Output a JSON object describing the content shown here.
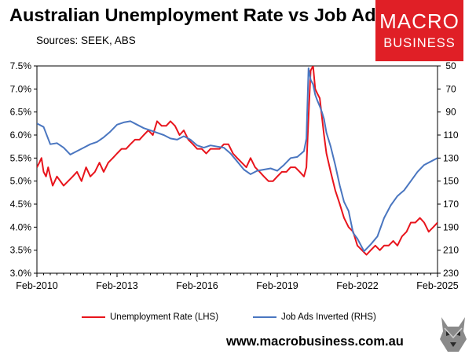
{
  "header": {
    "title": "Australian Unemployment Rate vs Job Ads",
    "subtitle": "Sources: SEEK, ABS"
  },
  "logo": {
    "line1": "MACRO",
    "line2": "BUSINESS",
    "color": "#e01f26"
  },
  "footer": {
    "url": "www.macrobusiness.com.au"
  },
  "chart_data": {
    "type": "line",
    "title": "Australian Unemployment Rate vs Job Ads",
    "x_ticks": [
      "Feb-2010",
      "Feb-2013",
      "Feb-2016",
      "Feb-2019",
      "Feb-2022",
      "Feb-2025"
    ],
    "y_left": {
      "label": "",
      "lim": [
        3.0,
        7.5
      ],
      "ticks": [
        "3.0%",
        "3.5%",
        "4.0%",
        "4.5%",
        "5.0%",
        "5.5%",
        "6.0%",
        "6.5%",
        "7.0%",
        "7.5%"
      ]
    },
    "y_right": {
      "label": "",
      "lim": [
        230,
        50
      ],
      "inverted": true,
      "ticks": [
        "50",
        "70",
        "90",
        "110",
        "130",
        "150",
        "170",
        "190",
        "210",
        "230"
      ]
    },
    "grid": false,
    "legend_position": "bottom",
    "series": [
      {
        "name": "Unemployment Rate (LHS)",
        "axis": "left",
        "color": "#e8141c",
        "x": [
          2010.08,
          2010.17,
          2010.25,
          2010.33,
          2010.42,
          2010.5,
          2010.58,
          2010.67,
          2010.75,
          2010.83,
          2011.08,
          2011.25,
          2011.42,
          2011.58,
          2011.75,
          2011.92,
          2012.08,
          2012.25,
          2012.42,
          2012.58,
          2012.75,
          2012.92,
          2013.08,
          2013.25,
          2013.42,
          2013.58,
          2013.75,
          2013.92,
          2014.08,
          2014.25,
          2014.42,
          2014.58,
          2014.75,
          2014.92,
          2015.08,
          2015.25,
          2015.42,
          2015.58,
          2015.75,
          2015.92,
          2016.08,
          2016.25,
          2016.42,
          2016.58,
          2016.75,
          2016.92,
          2017.08,
          2017.25,
          2017.42,
          2017.58,
          2017.75,
          2017.92,
          2018.08,
          2018.25,
          2018.42,
          2018.58,
          2018.75,
          2018.92,
          2019.08,
          2019.25,
          2019.42,
          2019.58,
          2019.75,
          2019.92,
          2020.08,
          2020.17,
          2020.25,
          2020.33,
          2020.42,
          2020.5,
          2020.58,
          2020.67,
          2020.75,
          2020.83,
          2020.92,
          2021.08,
          2021.25,
          2021.42,
          2021.58,
          2021.75,
          2021.92,
          2022.08,
          2022.25,
          2022.42,
          2022.58,
          2022.75,
          2022.92,
          2023.08,
          2023.25,
          2023.42,
          2023.58,
          2023.75,
          2023.92,
          2024.08,
          2024.25,
          2024.42,
          2024.58,
          2024.75,
          2024.92,
          2025.08
        ],
        "values": [
          5.3,
          5.4,
          5.5,
          5.2,
          5.1,
          5.3,
          5.1,
          4.9,
          5.0,
          5.1,
          4.9,
          5.0,
          5.1,
          5.2,
          5.0,
          5.3,
          5.1,
          5.2,
          5.4,
          5.2,
          5.4,
          5.5,
          5.6,
          5.7,
          5.7,
          5.8,
          5.9,
          5.9,
          6.0,
          6.1,
          6.0,
          6.3,
          6.2,
          6.2,
          6.3,
          6.2,
          6.0,
          6.1,
          5.9,
          5.8,
          5.7,
          5.7,
          5.6,
          5.7,
          5.7,
          5.7,
          5.8,
          5.8,
          5.6,
          5.5,
          5.4,
          5.3,
          5.5,
          5.3,
          5.2,
          5.1,
          5.0,
          5.0,
          5.1,
          5.2,
          5.2,
          5.3,
          5.3,
          5.2,
          5.1,
          5.3,
          6.4,
          7.4,
          7.5,
          7.0,
          6.9,
          6.8,
          6.4,
          6.0,
          5.6,
          5.2,
          4.8,
          4.5,
          4.2,
          4.0,
          3.9,
          3.6,
          3.5,
          3.4,
          3.5,
          3.6,
          3.5,
          3.6,
          3.6,
          3.7,
          3.6,
          3.8,
          3.9,
          4.1,
          4.1,
          4.2,
          4.1,
          3.9,
          4.0,
          4.1
        ]
      },
      {
        "name": "Job Ads Inverted (RHS)",
        "axis": "right",
        "color": "#4a76c0",
        "x": [
          2010.08,
          2010.33,
          2010.58,
          2010.83,
          2011.08,
          2011.33,
          2011.58,
          2011.83,
          2012.08,
          2012.33,
          2012.58,
          2012.83,
          2013.08,
          2013.33,
          2013.58,
          2013.83,
          2014.08,
          2014.33,
          2014.58,
          2014.83,
          2015.08,
          2015.33,
          2015.58,
          2015.83,
          2016.08,
          2016.33,
          2016.58,
          2016.83,
          2017.08,
          2017.33,
          2017.58,
          2017.83,
          2018.08,
          2018.33,
          2018.58,
          2018.83,
          2019.08,
          2019.33,
          2019.58,
          2019.83,
          2020.08,
          2020.17,
          2020.25,
          2020.33,
          2020.42,
          2020.5,
          2020.58,
          2020.67,
          2020.75,
          2020.83,
          2020.92,
          2021.08,
          2021.25,
          2021.42,
          2021.58,
          2021.75,
          2021.92,
          2022.08,
          2022.33,
          2022.58,
          2022.83,
          2023.08,
          2023.33,
          2023.58,
          2023.83,
          2024.08,
          2024.33,
          2024.58,
          2024.83,
          2025.08
        ],
        "values": [
          100,
          103,
          118,
          117,
          121,
          127,
          124,
          121,
          118,
          116,
          112,
          107,
          101,
          99,
          98,
          101,
          104,
          106,
          108,
          110,
          113,
          114,
          111,
          114,
          119,
          121,
          119,
          120,
          121,
          126,
          133,
          140,
          144,
          141,
          140,
          139,
          141,
          136,
          130,
          129,
          124,
          113,
          52,
          62,
          66,
          75,
          80,
          85,
          90,
          96,
          108,
          120,
          136,
          154,
          168,
          176,
          195,
          200,
          211,
          205,
          198,
          182,
          171,
          163,
          158,
          150,
          142,
          136,
          133,
          130
        ]
      }
    ]
  }
}
